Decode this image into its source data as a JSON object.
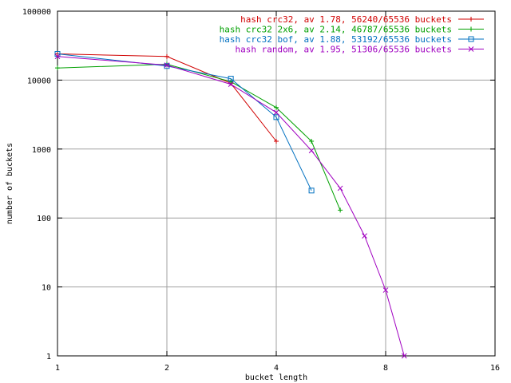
{
  "chart_data": {
    "type": "line",
    "xlabel": "bucket length",
    "ylabel": "number of buckets",
    "x_scale": "log2",
    "y_scale": "log10",
    "xlim": [
      1,
      16
    ],
    "ylim": [
      1,
      100000
    ],
    "x_ticks": [
      "1",
      "2",
      "4",
      "8",
      "16"
    ],
    "y_ticks": [
      "1",
      "10",
      "100",
      "1000",
      "10000",
      "100000"
    ],
    "grid": true,
    "legend_position": "top-right",
    "series": [
      {
        "name": "hash crc32, av 1.78, 56240/65536 buckets",
        "color": "#d00000",
        "marker": "plus",
        "points": [
          [
            1,
            24000
          ],
          [
            2,
            22000
          ],
          [
            3,
            9000
          ],
          [
            4,
            1300
          ]
        ]
      },
      {
        "name": "hash crc32 2x6, av 2.14, 46787/65536 buckets",
        "color": "#00a000",
        "marker": "plus",
        "points": [
          [
            1,
            15000
          ],
          [
            2,
            17000
          ],
          [
            3,
            9500
          ],
          [
            4,
            4000
          ],
          [
            5,
            1300
          ],
          [
            6,
            130
          ]
        ]
      },
      {
        "name": "hash crc32 bof, av 1.88, 53192/65536 buckets",
        "color": "#0070c0",
        "marker": "square",
        "points": [
          [
            1,
            24000
          ],
          [
            2,
            16000
          ],
          [
            3,
            10500
          ],
          [
            4,
            2900
          ],
          [
            5,
            250
          ]
        ]
      },
      {
        "name": "hash random, av 1.95, 51306/65536 buckets",
        "color": "#a000c0",
        "marker": "x",
        "points": [
          [
            1,
            22000
          ],
          [
            2,
            16500
          ],
          [
            3,
            8700
          ],
          [
            4,
            3400
          ],
          [
            5,
            950
          ],
          [
            6,
            270
          ],
          [
            7,
            55
          ],
          [
            8,
            9
          ],
          [
            9,
            1
          ]
        ]
      }
    ]
  }
}
